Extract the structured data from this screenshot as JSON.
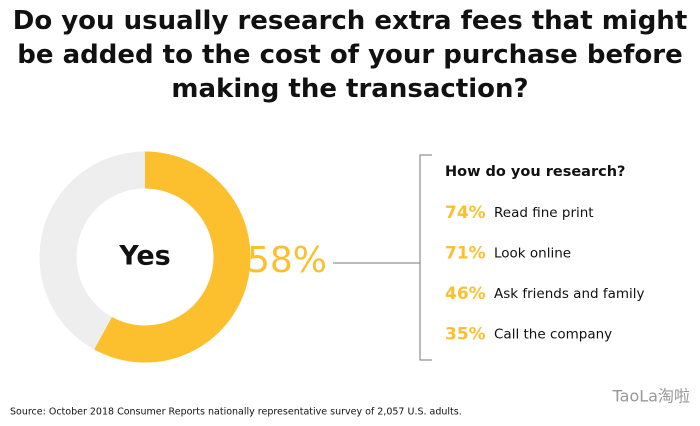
{
  "chart_data": [
    {
      "type": "donut",
      "title": "Do you usually research extra fees that might be added to the cost of your purchase before making the transaction?",
      "categories": [
        "Yes"
      ],
      "values": [
        58
      ],
      "value_labels": [
        "58%"
      ],
      "color": "#fcc02e",
      "track_color": "#eeeeee"
    },
    {
      "type": "list",
      "title": "How do you research?",
      "categories": [
        "Read fine print",
        "Look online",
        "Ask friends and family",
        "Call the company"
      ],
      "values": [
        74,
        71,
        46,
        35
      ],
      "value_labels": [
        "74%",
        "71%",
        "46%",
        "35%"
      ],
      "color": "#fcc02e"
    }
  ],
  "source": "Source: October 2018 Consumer Reports nationally representative survey of 2,057 U.S. adults.",
  "watermark": "TaoLa淘啦"
}
